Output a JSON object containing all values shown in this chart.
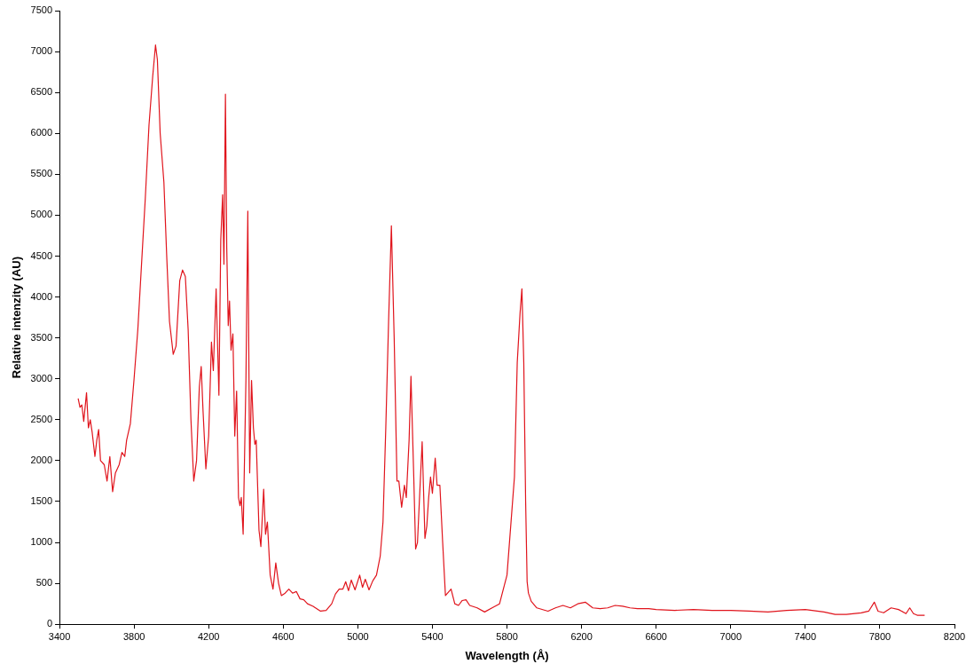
{
  "chart_data": {
    "type": "line",
    "xlabel": "Wavelength (Å)",
    "ylabel": "Relative intenzity (AU)",
    "xlim": [
      3400,
      8200
    ],
    "xticks": [
      3400,
      3800,
      4200,
      4600,
      5000,
      5400,
      5800,
      6200,
      6600,
      7000,
      7400,
      7800,
      8200
    ],
    "ylim": [
      0,
      7500
    ],
    "yticks": [
      0,
      500,
      1000,
      1500,
      2000,
      2500,
      3000,
      3500,
      4000,
      4500,
      5000,
      5500,
      6000,
      6500,
      7000,
      7500
    ],
    "grid": false,
    "legend": false,
    "marker": "none",
    "line_style": "solid",
    "series": [
      {
        "color": "#e0141c",
        "x": [
          3500,
          3510,
          3520,
          3530,
          3545,
          3555,
          3565,
          3575,
          3590,
          3600,
          3610,
          3620,
          3640,
          3655,
          3670,
          3685,
          3700,
          3720,
          3735,
          3750,
          3760,
          3780,
          3800,
          3820,
          3840,
          3860,
          3880,
          3900,
          3915,
          3925,
          3940,
          3960,
          3975,
          3990,
          4010,
          4025,
          4045,
          4060,
          4075,
          4090,
          4105,
          4120,
          4135,
          4150,
          4160,
          4170,
          4185,
          4200,
          4215,
          4225,
          4240,
          4255,
          4265,
          4275,
          4282,
          4290,
          4297,
          4305,
          4312,
          4320,
          4330,
          4340,
          4350,
          4360,
          4368,
          4375,
          4385,
          4400,
          4410,
          4420,
          4430,
          4440,
          4448,
          4455,
          4470,
          4480,
          4495,
          4505,
          4515,
          4530,
          4545,
          4560,
          4575,
          4590,
          4610,
          4630,
          4650,
          4670,
          4690,
          4710,
          4730,
          4760,
          4800,
          4830,
          4860,
          4880,
          4900,
          4920,
          4935,
          4950,
          4965,
          4985,
          5010,
          5025,
          5040,
          5060,
          5080,
          5100,
          5120,
          5135,
          5150,
          5165,
          5180,
          5195,
          5210,
          5220,
          5235,
          5250,
          5260,
          5275,
          5285,
          5300,
          5310,
          5320,
          5330,
          5345,
          5360,
          5370,
          5380,
          5390,
          5400,
          5415,
          5425,
          5440,
          5455,
          5470,
          5500,
          5520,
          5540,
          5560,
          5580,
          5600,
          5640,
          5680,
          5720,
          5760,
          5800,
          5840,
          5855,
          5870,
          5880,
          5890,
          5900,
          5908,
          5915,
          5930,
          5960,
          6020,
          6060,
          6100,
          6140,
          6180,
          6220,
          6260,
          6300,
          6340,
          6380,
          6420,
          6460,
          6500,
          6560,
          6600,
          6700,
          6800,
          6900,
          7000,
          7100,
          7200,
          7300,
          7400,
          7500,
          7560,
          7620,
          7700,
          7740,
          7770,
          7790,
          7820,
          7860,
          7900,
          7940,
          7960,
          7980,
          8000,
          8040
        ],
        "values": [
          2760,
          2650,
          2680,
          2480,
          2830,
          2400,
          2500,
          2350,
          2050,
          2250,
          2380,
          2000,
          1950,
          1750,
          2050,
          1620,
          1850,
          1950,
          2100,
          2050,
          2250,
          2450,
          3000,
          3600,
          4400,
          5200,
          6100,
          6700,
          7080,
          6900,
          6000,
          5400,
          4500,
          3700,
          3300,
          3400,
          4200,
          4330,
          4250,
          3600,
          2500,
          1750,
          2000,
          2900,
          3150,
          2600,
          1900,
          2300,
          3450,
          3100,
          4100,
          2800,
          4700,
          5250,
          4400,
          6480,
          4600,
          3650,
          3950,
          3350,
          3550,
          2300,
          2850,
          1550,
          1450,
          1550,
          1100,
          3000,
          5050,
          1850,
          2980,
          2400,
          2200,
          2250,
          1150,
          950,
          1650,
          1100,
          1250,
          600,
          430,
          750,
          500,
          350,
          380,
          430,
          380,
          400,
          310,
          300,
          250,
          220,
          160,
          170,
          250,
          370,
          430,
          430,
          520,
          410,
          540,
          420,
          600,
          450,
          550,
          420,
          530,
          600,
          830,
          1250,
          2400,
          3700,
          4870,
          3500,
          1750,
          1750,
          1430,
          1700,
          1550,
          2250,
          3030,
          1800,
          920,
          1000,
          1500,
          2230,
          1050,
          1200,
          1550,
          1800,
          1600,
          2030,
          1700,
          1700,
          1000,
          350,
          430,
          250,
          230,
          290,
          300,
          230,
          200,
          150,
          200,
          250,
          600,
          1800,
          3200,
          3800,
          4100,
          3200,
          1500,
          520,
          380,
          280,
          200,
          160,
          200,
          230,
          200,
          250,
          270,
          200,
          190,
          200,
          230,
          220,
          200,
          190,
          190,
          180,
          170,
          180,
          170,
          170,
          160,
          150,
          170,
          180,
          150,
          120,
          120,
          140,
          160,
          270,
          160,
          140,
          200,
          180,
          130,
          200,
          130,
          110,
          110
        ]
      }
    ]
  }
}
